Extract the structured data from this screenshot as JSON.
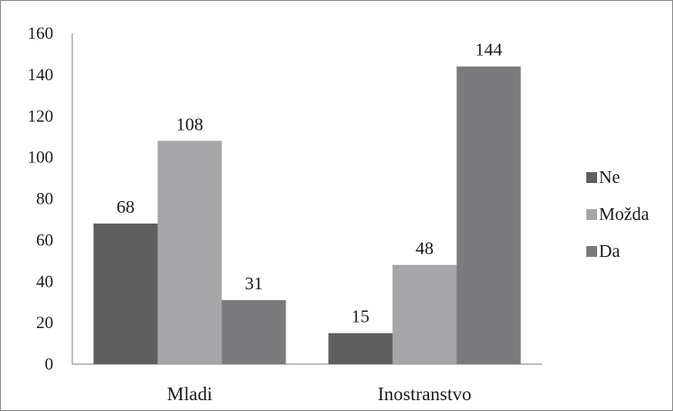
{
  "chart_data": {
    "type": "bar",
    "categories": [
      "Mladi",
      "Inostranstvo"
    ],
    "series": [
      {
        "name": "Ne",
        "values": [
          68,
          15
        ],
        "color": "#5f5f60"
      },
      {
        "name": "Možda",
        "values": [
          108,
          48
        ],
        "color": "#a6a6a8"
      },
      {
        "name": "Da",
        "values": [
          31,
          144
        ],
        "color": "#7b7b7d"
      }
    ],
    "yticks": [
      "0",
      "20",
      "40",
      "60",
      "80",
      "100",
      "120",
      "140",
      "160"
    ],
    "ylim": [
      0,
      160
    ],
    "grid": false,
    "legend": "right",
    "data_labels": true
  }
}
